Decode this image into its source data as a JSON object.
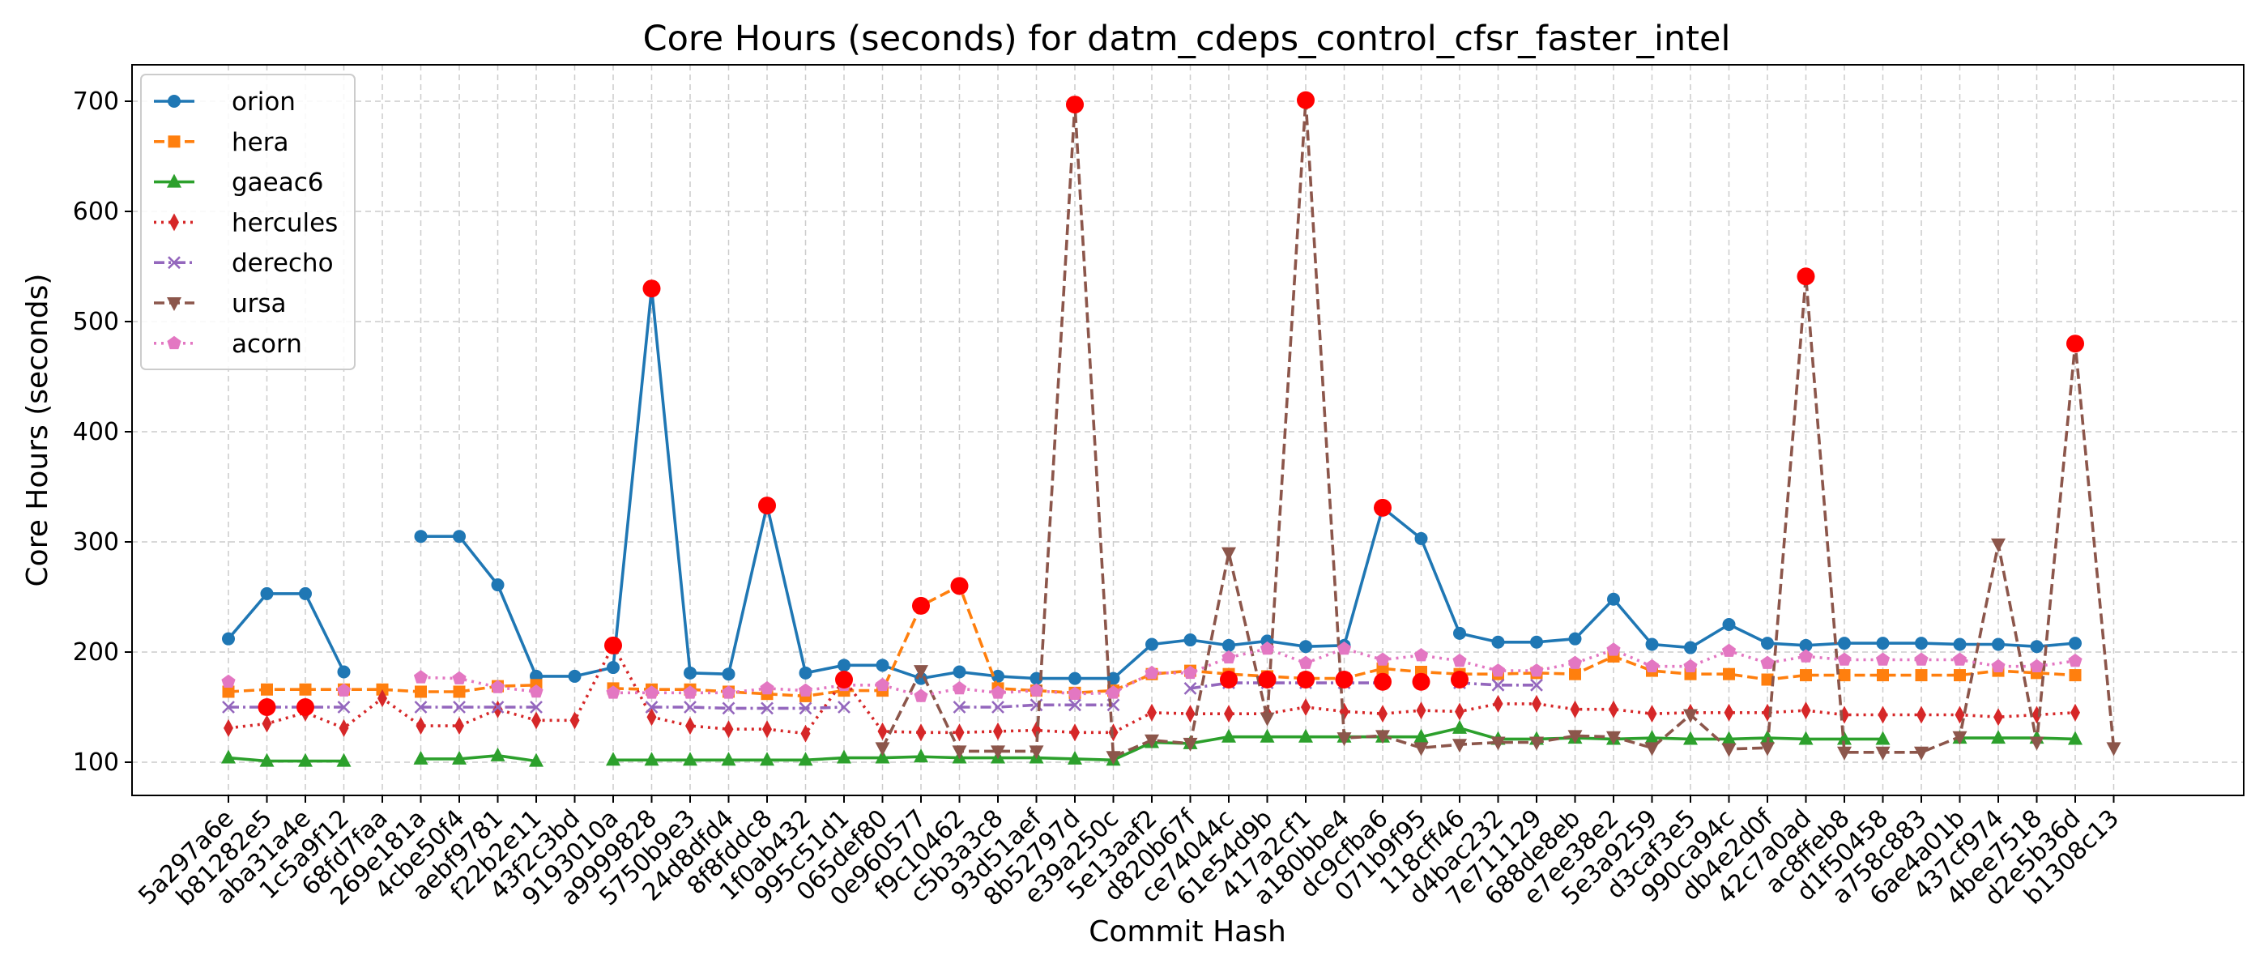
{
  "chart_data": {
    "type": "line",
    "title": "Core Hours (seconds) for datm_cdeps_control_cfsr_faster_intel",
    "xlabel": "Commit Hash",
    "ylabel": "Core Hours (seconds)",
    "ylim": [
      70,
      730
    ],
    "yticks": [
      100,
      200,
      300,
      400,
      500,
      600,
      700
    ],
    "grid": true,
    "legend_position": "top-left",
    "categories": [
      "5a297a6e",
      "b81282e5",
      "aba31a4e",
      "1c5a9f12",
      "68fd7faa",
      "269e181a",
      "4cbe50f4",
      "aebf9781",
      "f22b2e11",
      "43f2c3bd",
      "9193010a",
      "a9999828",
      "5750b9e3",
      "24d8dfd4",
      "8f8fddc8",
      "1f0ab432",
      "995c51d1",
      "065def80",
      "0e960577",
      "f9c10462",
      "c5b3a3c8",
      "93d51aef",
      "8b52797d",
      "e39a250c",
      "5e13aaf2",
      "d820b67f",
      "ce74044c",
      "61e54d9b",
      "417a2cf1",
      "a180bbe4",
      "dc9cfba6",
      "071b9f95",
      "118cff46",
      "d4bac232",
      "7e711129",
      "688de8eb",
      "e7ee38e2",
      "5e3a9259",
      "d3caf3e5",
      "990ca94c",
      "db4e2d0f",
      "42c7a0ad",
      "ac8ffeb8",
      "d1f50458",
      "a758c883",
      "6ae4a01b",
      "437cf974",
      "4bee7518",
      "d2e5b36d",
      "b1308c13"
    ],
    "series": [
      {
        "name": "orion",
        "color": "#1f77b4",
        "marker": "circle",
        "linestyle": "solid",
        "values": [
          212,
          253,
          253,
          182,
          null,
          305,
          305,
          261,
          178,
          178,
          186,
          530,
          181,
          180,
          333,
          181,
          188,
          188,
          176,
          182,
          178,
          176,
          176,
          176,
          207,
          211,
          206,
          210,
          205,
          206,
          331,
          303,
          217,
          209,
          209,
          212,
          248,
          207,
          204,
          225,
          208,
          206,
          208,
          208,
          208,
          207,
          207,
          205,
          208,
          null
        ]
      },
      {
        "name": "hera",
        "color": "#ff7f0e",
        "marker": "square",
        "linestyle": "dashed",
        "values": [
          164,
          166,
          166,
          166,
          166,
          164,
          164,
          169,
          170,
          null,
          167,
          166,
          166,
          164,
          162,
          160,
          165,
          165,
          242,
          260,
          167,
          165,
          163,
          165,
          180,
          183,
          180,
          178,
          176,
          176,
          185,
          182,
          180,
          180,
          181,
          180,
          196,
          183,
          180,
          180,
          175,
          179,
          179,
          179,
          179,
          179,
          183,
          181,
          179,
          null
        ]
      },
      {
        "name": "gaeac6",
        "color": "#2ca02c",
        "marker": "triangle-up",
        "linestyle": "solid",
        "values": [
          104,
          101,
          101,
          101,
          null,
          103,
          103,
          106,
          101,
          null,
          102,
          102,
          102,
          102,
          102,
          102,
          104,
          104,
          105,
          104,
          104,
          104,
          103,
          102,
          118,
          117,
          123,
          123,
          123,
          123,
          123,
          123,
          131,
          121,
          121,
          122,
          121,
          122,
          121,
          121,
          122,
          121,
          121,
          121,
          null,
          122,
          122,
          122,
          121,
          null
        ]
      },
      {
        "name": "hercules",
        "color": "#d62728",
        "marker": "thin-diamond",
        "linestyle": "dotted",
        "values": [
          131,
          135,
          145,
          131,
          158,
          133,
          133,
          148,
          138,
          138,
          206,
          141,
          133,
          130,
          130,
          126,
          175,
          128,
          127,
          127,
          128,
          129,
          127,
          127,
          145,
          144,
          144,
          144,
          150,
          146,
          144,
          147,
          146,
          153,
          153,
          148,
          148,
          144,
          145,
          145,
          145,
          147,
          143,
          143,
          143,
          143,
          141,
          143,
          145,
          null
        ]
      },
      {
        "name": "derecho",
        "color": "#9467bd",
        "marker": "x",
        "linestyle": "dashdot",
        "values": [
          150,
          150,
          150,
          150,
          null,
          150,
          150,
          150,
          150,
          null,
          null,
          150,
          150,
          149,
          149,
          149,
          150,
          null,
          null,
          150,
          150,
          152,
          152,
          152,
          null,
          167,
          172,
          172,
          172,
          172,
          172,
          null,
          172,
          170,
          170,
          null,
          null,
          null,
          null,
          null,
          null,
          null,
          null,
          null,
          null,
          null,
          null,
          null,
          null,
          null
        ]
      },
      {
        "name": "ursa",
        "color": "#8c564b",
        "marker": "triangle-down",
        "linestyle": "dashed",
        "values": [
          null,
          null,
          null,
          null,
          null,
          null,
          null,
          null,
          null,
          null,
          null,
          null,
          null,
          null,
          null,
          null,
          null,
          113,
          183,
          110,
          110,
          110,
          697,
          105,
          120,
          117,
          290,
          140,
          701,
          122,
          124,
          113,
          116,
          118,
          118,
          124,
          123,
          113,
          143,
          112,
          113,
          541,
          109,
          109,
          109,
          123,
          298,
          118,
          480,
          113
        ]
      },
      {
        "name": "acorn",
        "color": "#e377c2",
        "marker": "pentagon",
        "linestyle": "dotted",
        "values": [
          173,
          null,
          null,
          165,
          null,
          177,
          176,
          168,
          164,
          null,
          163,
          163,
          163,
          163,
          167,
          165,
          170,
          170,
          160,
          167,
          163,
          165,
          162,
          163,
          181,
          181,
          195,
          203,
          190,
          203,
          193,
          197,
          192,
          183,
          183,
          190,
          202,
          187,
          187,
          201,
          190,
          196,
          193,
          193,
          193,
          193,
          187,
          187,
          192,
          null
        ]
      }
    ],
    "highlighted_points": [
      {
        "x": "b81282e5",
        "y": 150
      },
      {
        "x": "aba31a4e",
        "y": 150
      },
      {
        "x": "9193010a",
        "y": 206
      },
      {
        "x": "a9999828",
        "y": 530
      },
      {
        "x": "8f8fddc8",
        "y": 333
      },
      {
        "x": "995c51d1",
        "y": 175
      },
      {
        "x": "0e960577",
        "y": 242
      },
      {
        "x": "f9c10462",
        "y": 260
      },
      {
        "x": "8b52797d",
        "y": 697
      },
      {
        "x": "ce74044c",
        "y": 175
      },
      {
        "x": "61e54d9b",
        "y": 175
      },
      {
        "x": "417a2cf1",
        "y": 701
      },
      {
        "x": "417a2cf1",
        "y": 175
      },
      {
        "x": "a180bbe4",
        "y": 175
      },
      {
        "x": "dc9cfba6",
        "y": 331
      },
      {
        "x": "dc9cfba6",
        "y": 173
      },
      {
        "x": "071b9f95",
        "y": 173
      },
      {
        "x": "118cff46",
        "y": 175
      },
      {
        "x": "42c7a0ad",
        "y": 541
      },
      {
        "x": "d2e5b36d",
        "y": 480
      }
    ],
    "highlight_color": "#ff0000"
  }
}
